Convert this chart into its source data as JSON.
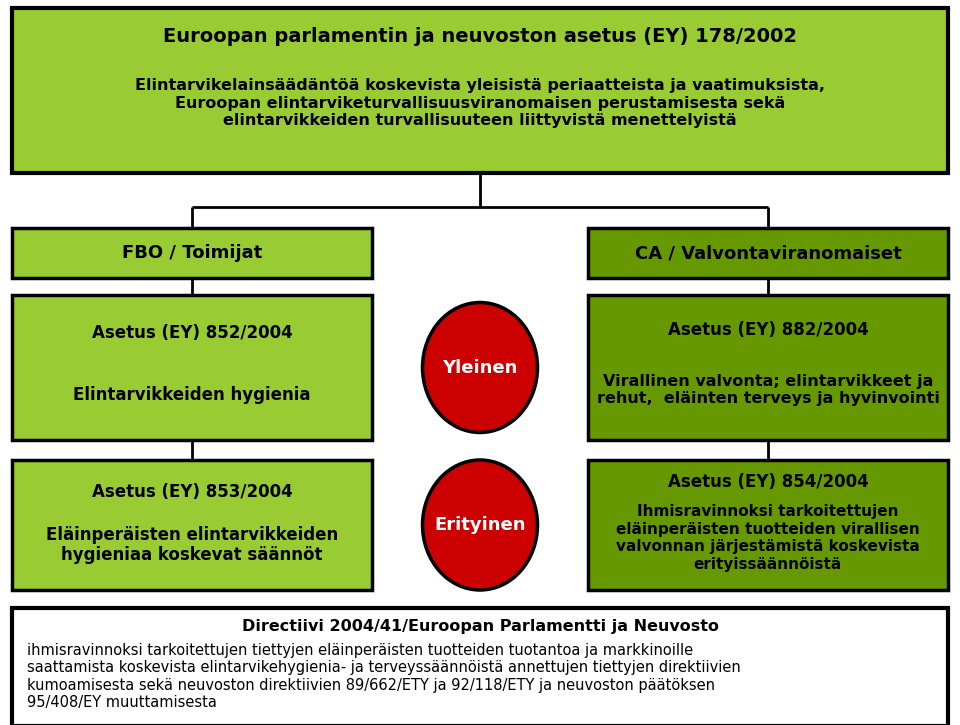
{
  "bg_color": "#ffffff",
  "light_green": "#99cc33",
  "dark_green": "#669900",
  "red_color": "#cc0000",
  "black": "#000000",
  "white": "#ffffff",
  "top_box": {
    "title": "Euroopan parlamentin ja neuvoston asetus (EY) 178/2002",
    "body": "Elintarvikelainsäädäntöä koskevista yleisistä periaatteista ja vaatimuksista,\nEuroopan elintarviketurvallisuusviranomaisen perustamisesta sekä\nelintarvikkeiden turvallisuuteen liittyvistä menettelyistä"
  },
  "fbo_box": {
    "title": "FBO / Toimijat"
  },
  "ca_box": {
    "title": "CA / Valvontaviranomaiset"
  },
  "box_852": {
    "line1": "Asetus (EY) 852/2004",
    "line2": "Elintarvikkeiden hygienia"
  },
  "box_882": {
    "line1": "Asetus (EY) 882/2004",
    "line2": "Virallinen valvonta; elintarvikkeet ja\nrehut,  eläinten terveys ja hyvinvointi"
  },
  "box_853": {
    "line1": "Asetus (EY) 853/2004",
    "line2": "Eläinperäisten elintarvikkeiden\nhygieniaa koskevat säännöt"
  },
  "box_854": {
    "line1": "Asetus (EY) 854/2004",
    "line2": "Ihmisravinnoksi tarkoitettujen\neläinperäisten tuotteiden virallisen\nvalvonnan järjestämistä koskevista\nerityissäännöistä"
  },
  "circle_yleinen": "Yleinen",
  "circle_erityinen": "Erityinen",
  "bottom_box": {
    "title": "Directiivi 2004/41/Euroopan Parlamentti ja Neuvosto",
    "body": "ihmisravinnoksi tarkoitettujen tiettyjen eläinperäisten tuotteiden tuotantoa ja markkinoille\nsaattamista koskevista elintarvikehygienia- ja terveyssäännöistä annettujen tiettyjen direktiivien\nkumoamisesta sekä neuvoston direktiivien 89/662/ETY ja 92/118/ETY ja neuvoston päätöksen\n95/408/EY muuttamisesta"
  }
}
